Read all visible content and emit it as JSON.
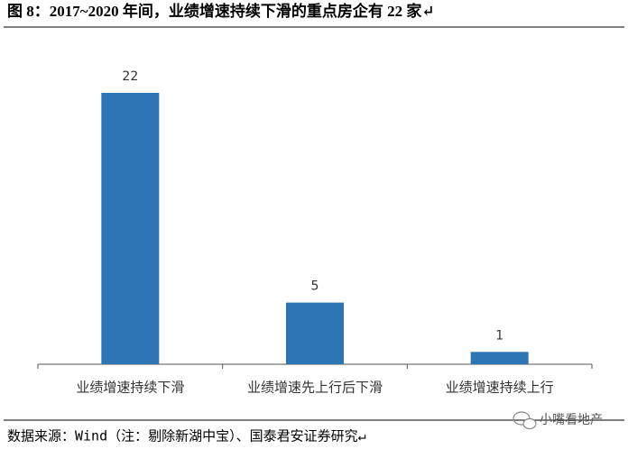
{
  "chart_data": {
    "type": "bar",
    "title": "图 8：2017~2020 年间，业绩增速持续下滑的重点房企有 22 家↵",
    "categories": [
      "业绩增速持续下滑",
      "业绩增速先上行后下滑",
      "业绩增速持续上行"
    ],
    "values": [
      22,
      5,
      1
    ],
    "color": "#2e75b6"
  },
  "source": "数据来源：Wind（注：剔除新湖中宝）、国泰君安证券研究↵",
  "watermark": "小嘴看地产"
}
